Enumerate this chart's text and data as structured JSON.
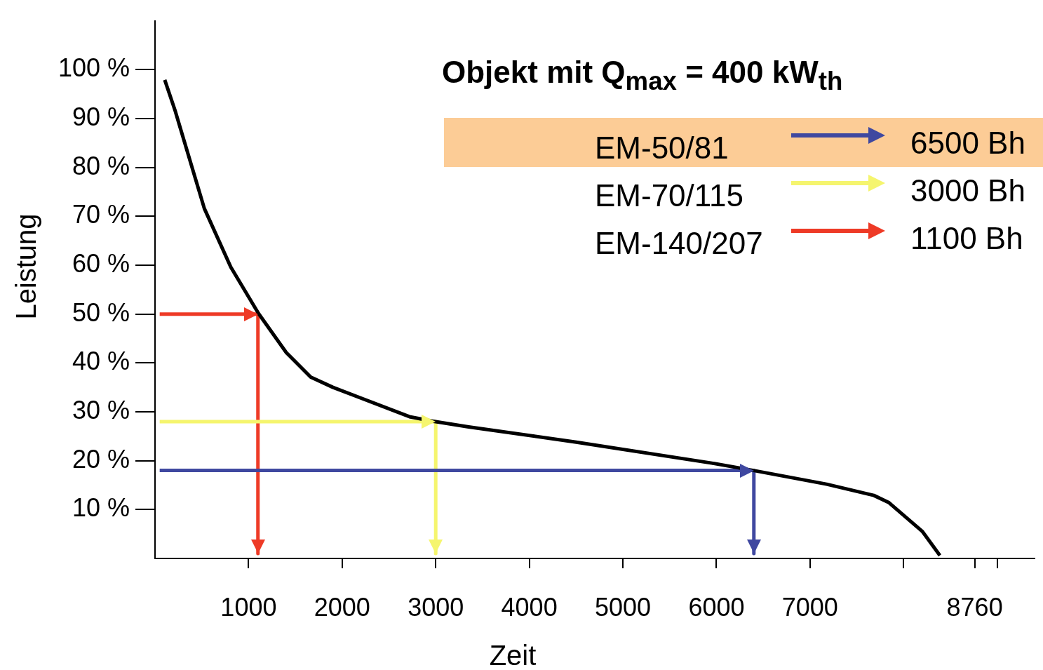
{
  "chart_data": {
    "type": "line",
    "title": "Objekt mit Q$_{max}$ = 400 kW$_{th}$",
    "xlabel": "Zeit",
    "ylabel": "Leistung",
    "xlim": [
      0,
      9400
    ],
    "xticks": [
      1000,
      2000,
      3000,
      4000,
      5000,
      6000,
      7000,
      {
        "value": 8000,
        "label": null
      },
      8760,
      {
        "value": 9000,
        "label": null
      }
    ],
    "ylim": [
      0,
      110
    ],
    "yticks": [
      {
        "value": 10,
        "label": "10 %"
      },
      {
        "value": 20,
        "label": "20 %"
      },
      {
        "value": 30,
        "label": "30 %"
      },
      {
        "value": 40,
        "label": "40 %"
      },
      {
        "value": 50,
        "label": "50 %"
      },
      {
        "value": 60,
        "label": "60 %"
      },
      {
        "value": 70,
        "label": "70 %"
      },
      {
        "value": 80,
        "label": "80 %"
      },
      {
        "value": 90,
        "label": "90 %"
      },
      {
        "value": 100,
        "label": "100 %"
      }
    ],
    "grid": false,
    "legend": "top right",
    "marker": "none",
    "line_style": "solid",
    "series": [
      {
        "color": "#000000",
        "x": [
          104,
          215,
          527,
          810,
          1107,
          1404,
          1664,
          1902,
          2719,
          2964,
          3351,
          4502,
          5951,
          6397,
          7177,
          7682,
          7845,
          8202,
          8388
        ],
        "values": [
          97.9,
          91.6,
          71.6,
          59.6,
          50.1,
          42.1,
          37.1,
          35.0,
          29.0,
          28.1,
          26.9,
          23.8,
          19.5,
          18.0,
          15.2,
          12.9,
          11.4,
          5.5,
          0.6
        ]
      },
      {
        "name": "EM-50/81",
        "color": "#3f48a0",
        "x": [
          50,
          6400,
          6400
        ],
        "values": [
          18,
          18,
          1
        ]
      },
      {
        "name": "EM-70/115",
        "color": "#f5f56e",
        "x": [
          50,
          3000,
          3000
        ],
        "values": [
          28,
          28,
          1
        ]
      },
      {
        "name": "EM-140/207",
        "color": "#ee3a26",
        "x": [
          50,
          1100,
          1100
        ],
        "values": [
          50,
          50,
          1
        ]
      }
    ],
    "annotations": [
      "6500 Bh",
      "3000 Bh",
      "1100 Bh"
    ]
  }
}
